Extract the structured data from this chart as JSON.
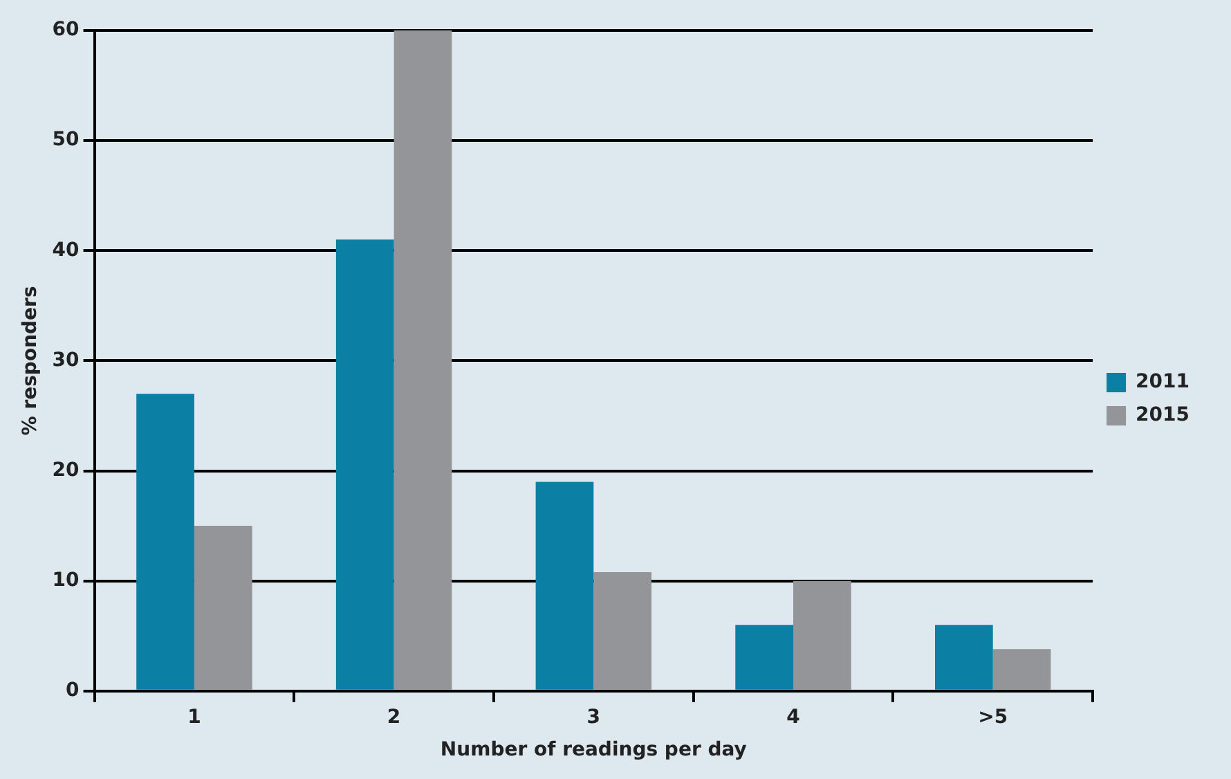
{
  "chart_data": {
    "type": "bar",
    "xlabel": "Number of readings per day",
    "ylabel": "% responders",
    "categories": [
      "1",
      "2",
      "3",
      "4",
      ">5"
    ],
    "series": [
      {
        "name": "2011",
        "color": "#0b7fa4",
        "values": [
          27,
          41,
          19,
          6,
          6
        ]
      },
      {
        "name": "2015",
        "color": "#939598",
        "values": [
          15,
          60,
          10.8,
          10,
          3.8
        ]
      }
    ],
    "ylim": [
      0,
      60
    ],
    "yticks": [
      0,
      10,
      20,
      30,
      40,
      50,
      60
    ],
    "grid": "y",
    "legend": "right"
  }
}
